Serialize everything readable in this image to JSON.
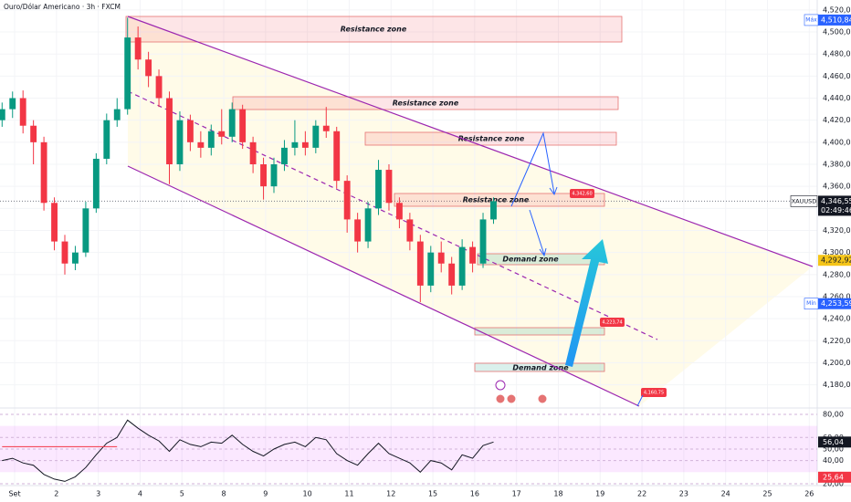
{
  "header": {
    "title": "Ouro/Dólar Americano · 3h · FXCM"
  },
  "zones": [
    "Resistance zone",
    "Resistance zone",
    "Resistance zone",
    "Resistance zone",
    "Demand zone",
    "Demand zone"
  ],
  "target_labels": [
    "4,342,60",
    "4,223,74",
    "4,160,75"
  ],
  "chart_data": [
    {
      "type": "candlestick",
      "x": [
        -0.3,
        -0.05,
        0.2,
        0.45,
        0.7,
        0.95,
        1.2,
        1.45,
        1.7,
        1.95,
        2.2,
        2.45,
        2.7,
        2.95,
        3.2,
        3.45,
        3.7,
        3.95,
        4.2,
        4.45,
        4.7,
        4.95,
        5.2,
        5.45,
        5.7,
        5.95,
        6.2,
        6.45,
        6.7,
        6.95,
        7.2,
        7.45,
        7.7,
        7.95,
        8.2,
        8.45,
        8.7,
        8.95,
        9.2,
        9.45,
        9.7,
        9.95,
        10.2,
        10.45,
        10.7,
        10.95,
        11.2,
        11.45
      ],
      "open": [
        4420,
        4430,
        4440,
        4415,
        4400,
        4345,
        4310,
        4290,
        4300,
        4340,
        4385,
        4420,
        4430,
        4495,
        4475,
        4460,
        4440,
        4380,
        4420,
        4400,
        4395,
        4410,
        4405,
        4430,
        4400,
        4380,
        4360,
        4380,
        4395,
        4400,
        4395,
        4415,
        4410,
        4365,
        4330,
        4310,
        4340,
        4375,
        4345,
        4330,
        4310,
        4270,
        4300,
        4290,
        4270,
        4305,
        4290,
        4330
      ],
      "high": [
        4436,
        4446,
        4447,
        4420,
        4405,
        4350,
        4316,
        4306,
        4346,
        4390,
        4426,
        4440,
        4513,
        4505,
        4482,
        4466,
        4446,
        4428,
        4425,
        4410,
        4416,
        4430,
        4436,
        4434,
        4405,
        4386,
        4386,
        4402,
        4420,
        4410,
        4420,
        4432,
        4414,
        4370,
        4336,
        4346,
        4384,
        4380,
        4350,
        4336,
        4316,
        4306,
        4310,
        4296,
        4312,
        4310,
        4336,
        4350
      ],
      "low": [
        4414,
        4422,
        4408,
        4380,
        4338,
        4302,
        4280,
        4284,
        4296,
        4336,
        4380,
        4414,
        4425,
        4466,
        4450,
        4432,
        4362,
        4374,
        4392,
        4386,
        4388,
        4398,
        4400,
        4394,
        4372,
        4348,
        4354,
        4374,
        4388,
        4388,
        4390,
        4404,
        4358,
        4318,
        4300,
        4304,
        4334,
        4338,
        4322,
        4302,
        4255,
        4264,
        4282,
        4262,
        4266,
        4282,
        4286,
        4326
      ],
      "close": [
        4430,
        4440,
        4415,
        4400,
        4345,
        4310,
        4290,
        4300,
        4340,
        4385,
        4420,
        4430,
        4495,
        4475,
        4460,
        4440,
        4380,
        4420,
        4400,
        4395,
        4410,
        4405,
        4430,
        4400,
        4380,
        4360,
        4380,
        4395,
        4400,
        4395,
        4415,
        4410,
        4365,
        4330,
        4310,
        4340,
        4375,
        4345,
        4330,
        4310,
        4270,
        4300,
        4290,
        4270,
        4305,
        4290,
        4330,
        4346.55
      ],
      "up_color": "#089981",
      "down_color": "#f23645",
      "xlim": [
        -0.35,
        19.19
      ],
      "xticks": [
        {
          "value": 0,
          "label": "Set"
        },
        {
          "value": 1,
          "label": "2"
        },
        {
          "value": 2,
          "label": "3"
        },
        {
          "value": 3,
          "label": "4"
        },
        {
          "value": 4,
          "label": "5"
        },
        {
          "value": 5,
          "label": "8"
        },
        {
          "value": 6,
          "label": "9"
        },
        {
          "value": 7,
          "label": "10"
        },
        {
          "value": 8,
          "label": "11"
        },
        {
          "value": 9,
          "label": "12"
        },
        {
          "value": 10,
          "label": "15"
        },
        {
          "value": 11,
          "label": "16"
        },
        {
          "value": 12,
          "label": "17"
        },
        {
          "value": 13,
          "label": "18"
        },
        {
          "value": 14,
          "label": "19"
        },
        {
          "value": 15,
          "label": "22"
        },
        {
          "value": 16,
          "label": "23"
        },
        {
          "value": 17,
          "label": "24"
        },
        {
          "value": 18,
          "label": "25"
        },
        {
          "value": 19,
          "label": "26"
        }
      ],
      "ylim": [
        4159,
        4529
      ],
      "yticks": [
        {
          "value": 4180,
          "label": "4,180,00"
        },
        {
          "value": 4200,
          "label": "4,200,00"
        },
        {
          "value": 4220,
          "label": "4,220,00"
        },
        {
          "value": 4240,
          "label": "4,240,00"
        },
        {
          "value": 4260,
          "label": "4,260,00"
        },
        {
          "value": 4280,
          "label": "4,280,00"
        },
        {
          "value": 4300,
          "label": "4,300,00"
        },
        {
          "value": 4320,
          "label": "4,320,00"
        },
        {
          "value": 4340,
          "label": "4,340,00"
        },
        {
          "value": 4360,
          "label": "4,360,00"
        },
        {
          "value": 4380,
          "label": "4,380,00"
        },
        {
          "value": 4400,
          "label": "4,400,00"
        },
        {
          "value": 4420,
          "label": "4,420,00"
        },
        {
          "value": 4440,
          "label": "4,440,00"
        },
        {
          "value": 4460,
          "label": "4,460,00"
        },
        {
          "value": 4480,
          "label": "4,480,00"
        },
        {
          "value": 4500,
          "label": "4,500,00"
        },
        {
          "value": 4520,
          "label": "4,520,00"
        }
      ],
      "price_tags": [
        {
          "value": 4510.84,
          "label": "4,510,84",
          "caption": "Máx",
          "color": "#2962ff"
        },
        {
          "value": 4346.55,
          "label": "4,346,55",
          "caption": "XAUUSD",
          "countdown": "02:49:46",
          "color": "#131722"
        },
        {
          "value": 4292.92,
          "label": "4,292,92",
          "color": "#f5c518"
        },
        {
          "value": 4253.59,
          "label": "4,253,59",
          "caption": "Mín",
          "color": "#2962ff"
        }
      ]
    },
    {
      "type": "line",
      "x": [
        -0.3,
        -0.05,
        0.2,
        0.45,
        0.7,
        0.95,
        1.2,
        1.45,
        1.7,
        1.95,
        2.2,
        2.45,
        2.7,
        2.95,
        3.2,
        3.45,
        3.7,
        3.95,
        4.2,
        4.45,
        4.7,
        4.95,
        5.2,
        5.45,
        5.7,
        5.95,
        6.2,
        6.45,
        6.7,
        6.95,
        7.2,
        7.45,
        7.7,
        7.95,
        8.2,
        8.45,
        8.7,
        8.95,
        9.2,
        9.45,
        9.7,
        9.95,
        10.2,
        10.45,
        10.7,
        10.95,
        11.2,
        11.45
      ],
      "series": [
        {
          "color": "#131722",
          "values": [
            40,
            42,
            38,
            36,
            28,
            24,
            22,
            26,
            34,
            45,
            55,
            60,
            75,
            68,
            62,
            57,
            48,
            58,
            54,
            52,
            56,
            55,
            62,
            54,
            48,
            44,
            50,
            54,
            56,
            52,
            60,
            58,
            46,
            40,
            36,
            46,
            55,
            46,
            42,
            38,
            30,
            40,
            38,
            32,
            45,
            42,
            53,
            56.04
          ]
        },
        {
          "color": "#f23645",
          "values": [
            52,
            52,
            52,
            52,
            52,
            52,
            52,
            52,
            52,
            52,
            52,
            52,
            null,
            null,
            null,
            null,
            null,
            null,
            null,
            null,
            null,
            null,
            null,
            null,
            null,
            null,
            null,
            null,
            null,
            null,
            null,
            null,
            null,
            null,
            null,
            null,
            null,
            null,
            null,
            null,
            null,
            null,
            null,
            null,
            null,
            null,
            null,
            null
          ]
        }
      ],
      "xlim": [
        -0.35,
        19.19
      ],
      "ylim": [
        18.4,
        84.7
      ],
      "band": [
        30,
        70
      ],
      "yticks": [
        {
          "value": 80,
          "label": "80,00"
        },
        {
          "value": 60,
          "label": "60,00"
        },
        {
          "value": 50,
          "label": "50,00"
        },
        {
          "value": 40,
          "label": "40,00"
        },
        {
          "value": 20,
          "label": "20,00"
        }
      ],
      "last_tags": [
        {
          "value": 56.04,
          "label": "56,04",
          "color": "#131722"
        },
        {
          "value": 25.64,
          "label": "25,64",
          "color": "#f23645"
        }
      ]
    }
  ]
}
